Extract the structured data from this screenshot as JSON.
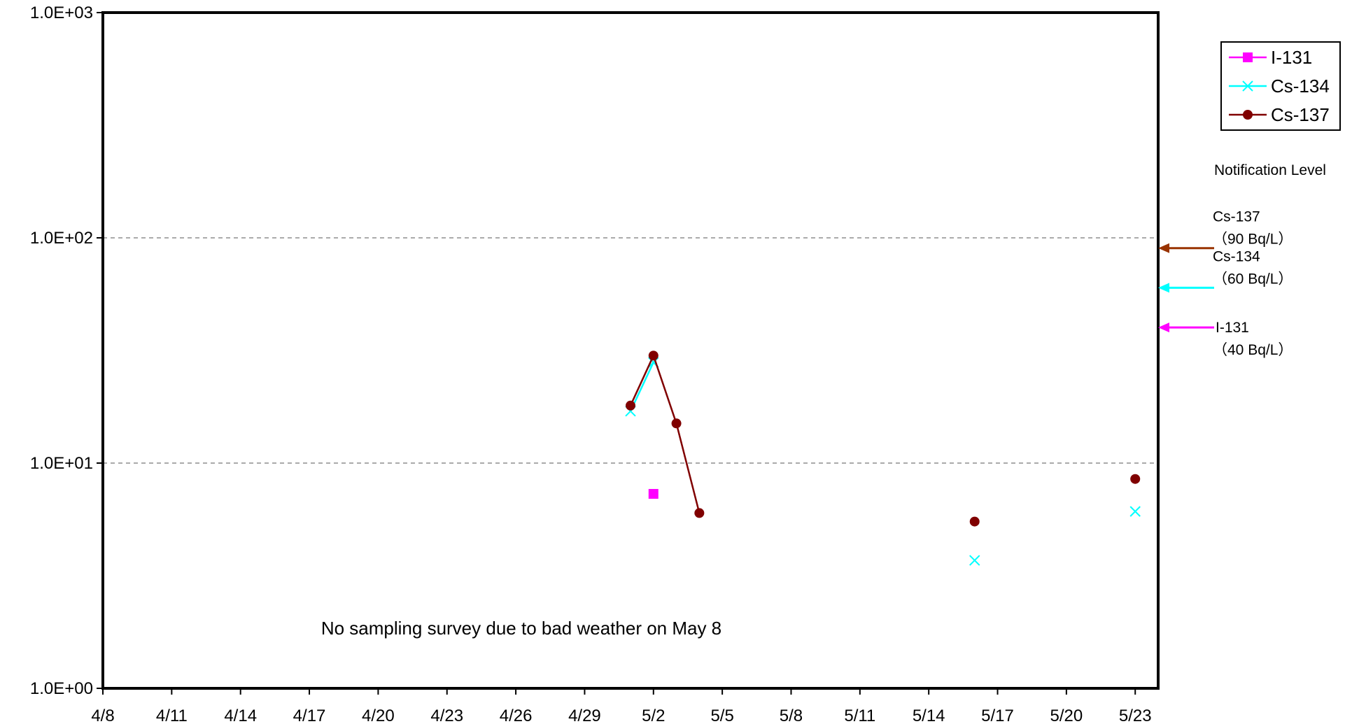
{
  "chart_data": {
    "type": "line",
    "x": [
      "2011-05-01",
      "2011-05-02",
      "2011-05-03",
      "2011-05-04",
      "2011-05-16",
      "2011-05-23"
    ],
    "series": [
      {
        "name": "I-131",
        "color": "#ff00ff",
        "marker": "square",
        "values": [
          null,
          7.3,
          null,
          null,
          null,
          null
        ]
      },
      {
        "name": "Cs-134",
        "color": "#00ffff",
        "marker": "x",
        "values": [
          17,
          28,
          null,
          null,
          3.7,
          6.1
        ]
      },
      {
        "name": "Cs-137",
        "color": "#800000",
        "marker": "circle",
        "values": [
          18,
          30,
          15,
          6.0,
          5.5,
          8.5
        ]
      }
    ],
    "xlim": [
      "2011-04-08",
      "2011-05-24"
    ],
    "x_tick_labels": [
      "4/8",
      "4/11",
      "4/14",
      "4/17",
      "4/20",
      "4/23",
      "4/26",
      "4/29",
      "5/2",
      "5/5",
      "5/8",
      "5/11",
      "5/14",
      "5/17",
      "5/20",
      "5/23"
    ],
    "y_scale": "log",
    "ylim": [
      1,
      1000
    ],
    "y_tick_labels": [
      "1.0E+00",
      "1.0E+01",
      "1.0E+02",
      "1.0E+03"
    ],
    "grid": "dashed horizontal at 1.0E+01 and 1.0E+02",
    "legend_position": "top-right",
    "annotation": "No sampling survey due to bad weather on May 8",
    "notification_levels": {
      "title": "Notification Level",
      "levels": [
        {
          "nuclide": "Cs-137",
          "value_label": "（90 Bq/L）",
          "value": 90,
          "color": "#993300"
        },
        {
          "nuclide": "Cs-134",
          "value_label": "（60 Bq/L）",
          "value": 60,
          "color": "#00ffff"
        },
        {
          "nuclide": "I-131",
          "value_label": "（40 Bq/L）",
          "value": 40,
          "color": "#ff00ff"
        }
      ]
    }
  }
}
